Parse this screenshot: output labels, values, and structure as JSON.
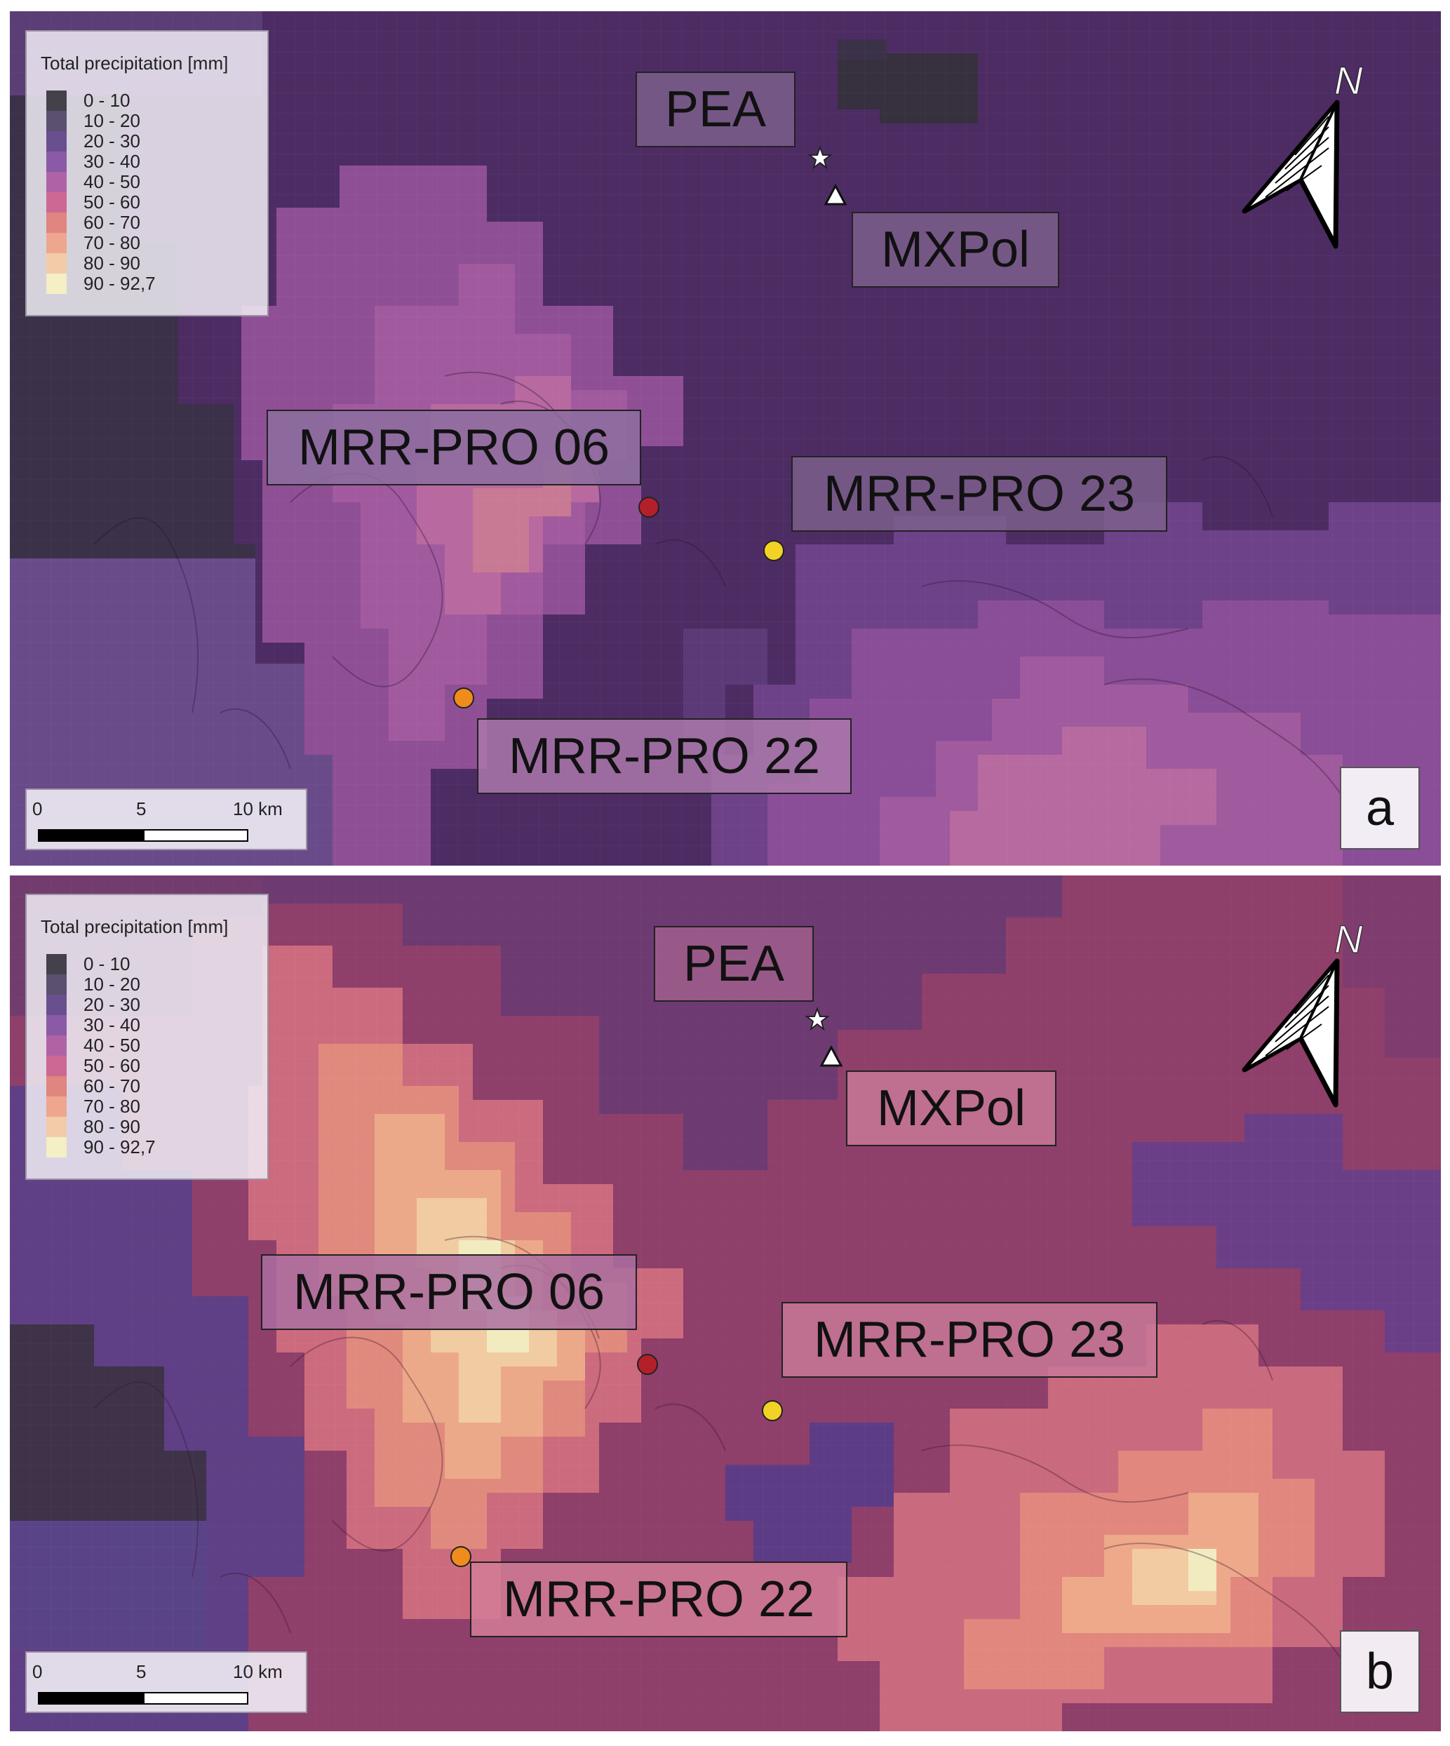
{
  "legend": {
    "title": "Total precipitation [mm]",
    "classes": [
      {
        "label": "0 - 10",
        "color": "#45414b"
      },
      {
        "label": "10 - 20",
        "color": "#5b5070"
      },
      {
        "label": "20 - 30",
        "color": "#6a4f8f"
      },
      {
        "label": "30 - 40",
        "color": "#8a5aa6"
      },
      {
        "label": "40 - 50",
        "color": "#b062a6"
      },
      {
        "label": "50 - 60",
        "color": "#cd6892"
      },
      {
        "label": "60 - 70",
        "color": "#e0857f"
      },
      {
        "label": "70 - 80",
        "color": "#eea78e"
      },
      {
        "label": "80 - 90",
        "color": "#f2cba8"
      },
      {
        "label": "90 - 92,7",
        "color": "#f4efc4"
      }
    ]
  },
  "sites": {
    "pea": "PEA",
    "mxpol": "MXPol",
    "mrr06": "MRR-PRO 06",
    "mrr23": "MRR-PRO 23",
    "mrr22": "MRR-PRO 22"
  },
  "site_colors": {
    "mrr06": "#b3202a",
    "mrr23": "#f2d325",
    "mrr22": "#f08c1c"
  },
  "scalebar": {
    "tick0": "0",
    "tick1": "5",
    "tick2": "10 km"
  },
  "north_arrow": {
    "letter": "N",
    "icon": "north-arrow-icon"
  },
  "panels": {
    "a": {
      "letter": "a"
    },
    "b": {
      "letter": "b"
    }
  }
}
